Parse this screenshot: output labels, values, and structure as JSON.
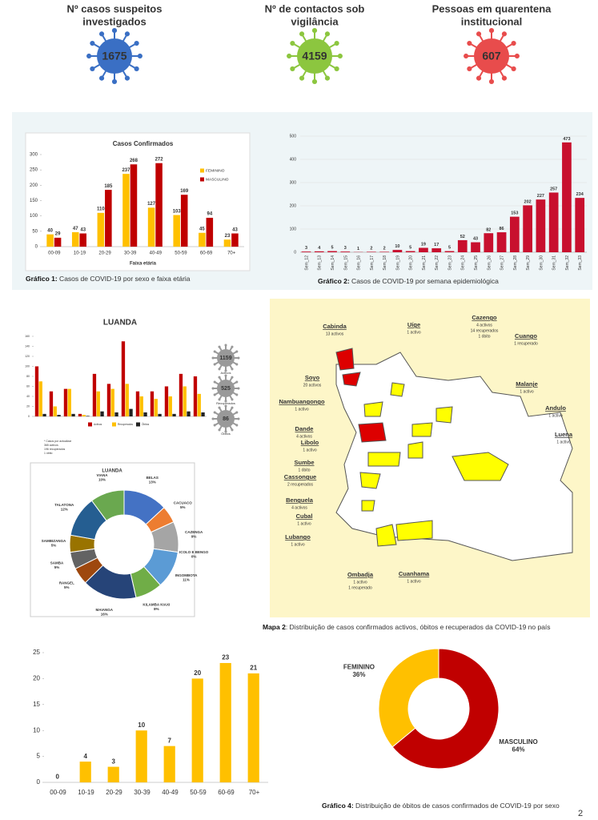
{
  "stats": [
    {
      "label": [
        "Nº casos suspeitos",
        "investigados"
      ],
      "value": "1675",
      "color": "#3a6fc4"
    },
    {
      "label": [
        "Nº de contactos sob",
        "vigilância"
      ],
      "value": "4159",
      "color": "#8cc63f"
    },
    {
      "label": [
        "Pessoas em quarentena",
        "institucional"
      ],
      "value": "607",
      "color": "#e84c4c"
    }
  ],
  "chart_data": [
    {
      "type": "bar",
      "title": "Casos Confirmados",
      "xlabel": "Faixa etária",
      "categories": [
        "00-09",
        "10-19",
        "20-29",
        "30-39",
        "40-49",
        "50-59",
        "60-69",
        "70+"
      ],
      "series": [
        {
          "name": "FEMININO",
          "color": "#ffc000",
          "values": [
            40,
            47,
            110,
            237,
            127,
            103,
            45,
            23
          ]
        },
        {
          "name": "MASCULINO",
          "color": "#c00000",
          "values": [
            29,
            43,
            185,
            268,
            272,
            169,
            94,
            43
          ]
        }
      ],
      "ylim": [
        0,
        300
      ],
      "yticks": [
        0,
        50,
        100,
        150,
        200,
        250,
        300
      ],
      "grid": false,
      "data_labels": true,
      "caption_label": "Gráfico 1:",
      "caption": " Casos de COVID-19 por sexo e faixa etária"
    },
    {
      "type": "bar",
      "categories": [
        "Sem_12",
        "Sem_13",
        "Sem_14",
        "Sem_15",
        "Sem_16",
        "Sem_17",
        "Sem_18",
        "Sem_19",
        "Sem_20",
        "Sem_21",
        "Sem_22",
        "Sem_23",
        "Sem_24",
        "Sem_25",
        "Sem_26",
        "Sem_27",
        "Sem_28",
        "Sem_29",
        "Sem_30",
        "Sem_31",
        "Sem_32",
        "Sem_33"
      ],
      "values": [
        3,
        4,
        5,
        3,
        1,
        2,
        2,
        10,
        5,
        19,
        17,
        5,
        52,
        43,
        82,
        86,
        153,
        202,
        227,
        257,
        473,
        234
      ],
      "color": "#c8102e",
      "ylim": [
        0,
        500
      ],
      "yticks": [
        0,
        100,
        200,
        300,
        400,
        500
      ],
      "grid": true,
      "data_labels": true,
      "caption_label": "Gráfico 2:",
      "caption": " Casos de COVID-19 por semana epidemiológica"
    },
    {
      "type": "bar",
      "title": "LUANDA",
      "categories": [
        null,
        null,
        null,
        null,
        null,
        null,
        null,
        null,
        null,
        null,
        null,
        null
      ],
      "series": [
        {
          "name": "Activos",
          "color": "#c00000",
          "values": [
            100,
            50,
            55,
            5,
            85,
            65,
            150,
            50,
            50,
            60,
            85,
            80
          ]
        },
        {
          "name": "Recuperados",
          "color": "#ffc000",
          "values": [
            70,
            20,
            55,
            3,
            50,
            55,
            65,
            40,
            35,
            40,
            60,
            45
          ]
        },
        {
          "name": "Óbitos",
          "color": "#222222",
          "values": [
            5,
            3,
            5,
            1,
            10,
            8,
            15,
            8,
            5,
            5,
            10,
            8
          ]
        }
      ],
      "ylim": [
        0,
        160
      ],
      "yticks": [
        0,
        20,
        40,
        60,
        80,
        100,
        120,
        140,
        160
      ],
      "grid": false,
      "data_labels": false,
      "icons": [
        {
          "value": "1159",
          "label": "Activos"
        },
        {
          "value": "525",
          "label": "Recuperados"
        },
        {
          "value": "86",
          "label": "Óbitos"
        }
      ],
      "notes": [
        "* Casos por actualizar",
        "365 activos",
        "196 recuperados",
        "1 óbito"
      ]
    },
    {
      "type": "donut",
      "title": "LUANDA",
      "categories": [
        "BELAS",
        "CACUACO",
        "CAZENGA",
        "ICOLO E BENGO",
        "INGOMBOTA",
        "KILAMBA KIAXI",
        "MAIANGA",
        "RANGEL",
        "SAMBA",
        "SAMBIZANGA",
        "TALATONA",
        "VIANA"
      ],
      "values": [
        13,
        5,
        9,
        0,
        11,
        8,
        16,
        5,
        5,
        5,
        12,
        10
      ],
      "value_labels": [
        "13%",
        "5%",
        "9%",
        "0%",
        "11%",
        "8%",
        "16%",
        "5%",
        "5%",
        "5%",
        "12%",
        "10%"
      ],
      "colors": [
        "#4472c4",
        "#ed7d31",
        "#a5a5a5",
        "#ffc000",
        "#5b9bd5",
        "#70ad47",
        "#264478",
        "#9e480e",
        "#636363",
        "#997300",
        "#255e91",
        "#6aa84f"
      ]
    },
    {
      "type": "bar",
      "categories": [
        "00-09",
        "10-19",
        "20-29",
        "30-39",
        "40-49",
        "50-59",
        "60-69",
        "70+"
      ],
      "values": [
        0,
        4,
        3,
        10,
        7,
        20,
        23,
        21
      ],
      "color": "#ffc000",
      "ylim": [
        0,
        25
      ],
      "yticks": [
        0,
        5,
        10,
        15,
        20,
        25
      ],
      "grid": false,
      "data_labels": true,
      "caption_label": "Gráfico 3:",
      "caption": " Óbitos de casos confirmados de COVID-19  por faixa etária"
    },
    {
      "type": "donut",
      "categories": [
        "MASCULINO",
        "FEMININO"
      ],
      "values": [
        64,
        36
      ],
      "value_labels": [
        "64%",
        "36%"
      ],
      "colors": [
        "#c00000",
        "#ffc000"
      ],
      "caption_label": "Gráfico 4:",
      "caption": " Distribuição de óbitos de casos confirmados de COVID-19 por sexo"
    }
  ],
  "map": {
    "labels": [
      {
        "name": "Cabinda",
        "details": [
          "13 activos"
        ]
      },
      {
        "name": "Uíge",
        "details": [
          "1 activo"
        ]
      },
      {
        "name": "Cazengo",
        "details": [
          "4 activos",
          "14 recuperados",
          "1 óbito"
        ]
      },
      {
        "name": "Cuango",
        "details": [
          "1 recuperado"
        ]
      },
      {
        "name": "Soyo",
        "details": [
          "20 activos"
        ]
      },
      {
        "name": "Nambuangongo",
        "details": [
          "1 activo"
        ]
      },
      {
        "name": "Malanje",
        "details": [
          "1 activo"
        ]
      },
      {
        "name": "Andulo",
        "details": [
          "1 activo"
        ]
      },
      {
        "name": "Dande",
        "details": [
          "4 activos"
        ]
      },
      {
        "name": "Luena",
        "details": [
          "1 activo"
        ]
      },
      {
        "name": "Libolo",
        "details": [
          "1 activo"
        ]
      },
      {
        "name": "Sumbe",
        "details": [
          "1 óbito"
        ]
      },
      {
        "name": "Cassongue",
        "details": [
          "2 recuperados"
        ]
      },
      {
        "name": "Benguela",
        "details": [
          "4  activos"
        ]
      },
      {
        "name": "Cubal",
        "details": [
          "1 activo"
        ]
      },
      {
        "name": "Lubango",
        "details": [
          "1 activo"
        ]
      },
      {
        "name": "Ombadja",
        "details": [
          "1 activo",
          "1 recuperado"
        ]
      },
      {
        "name": "Cuanhama",
        "details": [
          "1 activo"
        ]
      }
    ],
    "caption_label": "Mapa 2",
    "caption": ": Distribuição de casos confirmados activos, óbitos e recuperados da COVID-19 no país"
  },
  "page_number": "2"
}
